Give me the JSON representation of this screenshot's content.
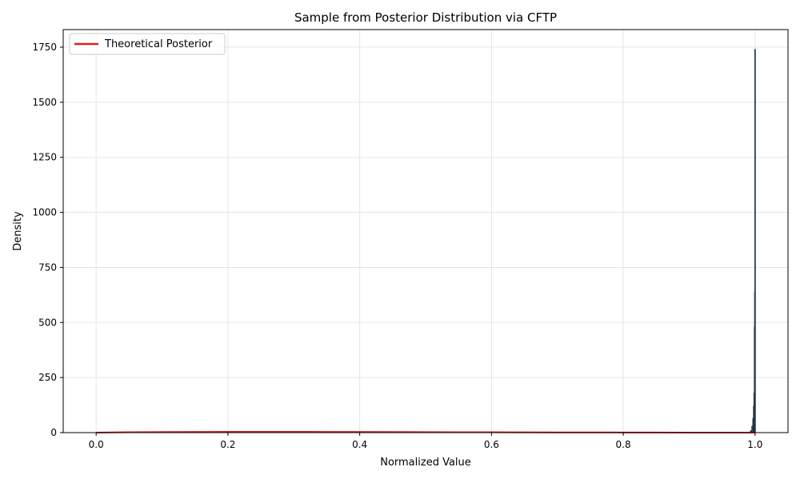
{
  "chart_data": {
    "type": "histogram",
    "title": "Sample from Posterior Distribution via CFTP",
    "xlabel": "Normalized Value",
    "ylabel": "Density",
    "xlim": [
      -0.05,
      1.05
    ],
    "ylim": [
      0,
      1830
    ],
    "xticks": [
      "0.0",
      "0.2",
      "0.4",
      "0.6",
      "0.8",
      "1.0"
    ],
    "yticks": [
      "0",
      "250",
      "500",
      "750",
      "1000",
      "1250",
      "1500",
      "1750"
    ],
    "grid": true,
    "legend": {
      "position": "upper-left",
      "entries": [
        "Theoretical Posterior"
      ]
    },
    "colors": {
      "histogram": "#1f77b4",
      "edge": "#222222",
      "curve": "#e31a1c",
      "grid": "#e5e5e5"
    },
    "histogram": {
      "bin_centers": [
        0.991,
        0.9935,
        0.9955,
        0.997,
        0.998,
        0.9987,
        0.9992,
        0.9996,
        0.9999
      ],
      "bin_width": 0.0012,
      "densities": [
        3,
        10,
        30,
        65,
        120,
        180,
        480,
        640,
        1740
      ]
    },
    "curve": {
      "name": "Theoretical Posterior",
      "x": [
        0.0,
        0.05,
        0.1,
        0.15,
        0.2,
        0.25,
        0.3,
        0.35,
        0.4,
        0.45,
        0.5,
        0.55,
        0.6,
        0.65,
        0.7,
        0.75,
        0.8,
        0.85,
        0.9,
        0.95,
        1.0
      ],
      "y": [
        0,
        1.6,
        2.6,
        3.2,
        3.5,
        3.6,
        3.5,
        3.3,
        3.0,
        2.7,
        2.4,
        2.0,
        1.7,
        1.4,
        1.1,
        0.8,
        0.6,
        0.4,
        0.2,
        0.1,
        0
      ]
    }
  }
}
